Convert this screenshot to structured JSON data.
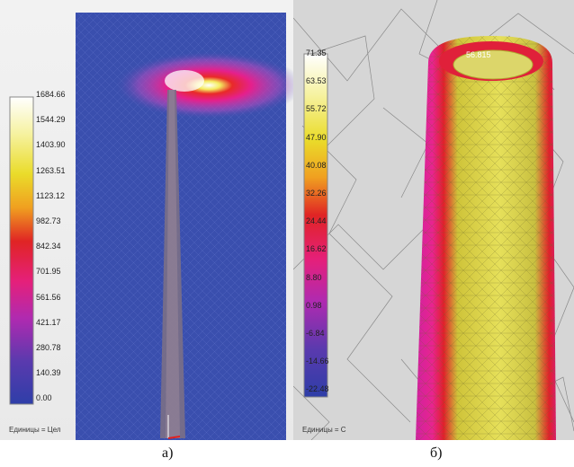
{
  "panel_a": {
    "legend_ticks": [
      "1684.66",
      "1544.29",
      "1403.90",
      "1263.51",
      "1123.12",
      "982.73",
      "842.34",
      "701.95",
      "561.56",
      "421.17",
      "280.78",
      "140.39",
      "0.00"
    ],
    "units_label": "Единицы = Цел",
    "caption": "а)"
  },
  "panel_b": {
    "legend_ticks": [
      "71.35",
      "63.53",
      "55.72",
      "47.90",
      "40.08",
      "32.26",
      "24.44",
      "16.62",
      "8.80",
      "0.98",
      "-6.84",
      "-14.66",
      "-22.48"
    ],
    "units_label": "Единицы = C",
    "probe_value": "56.815",
    "caption": "б)"
  },
  "colors": {
    "mesh_blue": "#3a4fae",
    "hot_magenta": "#e8248f",
    "hot_red": "#e0202a",
    "hot_yellow": "#e8e24a"
  }
}
